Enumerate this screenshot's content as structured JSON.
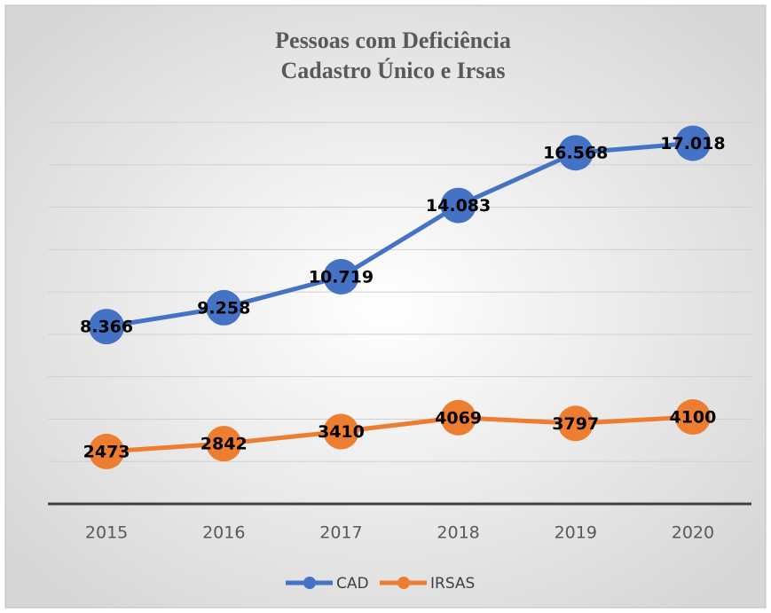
{
  "chart_data": {
    "type": "line",
    "title": "Pessoas com Deficiência",
    "subtitle": "Cadastro Único e Irsas",
    "categories": [
      "2015",
      "2016",
      "2017",
      "2018",
      "2019",
      "2020"
    ],
    "series": [
      {
        "name": "CAD",
        "color": "#4472c4",
        "values": [
          8366,
          9258,
          10719,
          14083,
          16568,
          17018
        ],
        "value_labels": [
          "8.366",
          "9.258",
          "10.719",
          "14.083",
          "16.568",
          "17.018"
        ]
      },
      {
        "name": "IRSAS",
        "color": "#ed7d31",
        "values": [
          2473,
          2842,
          3410,
          4069,
          3797,
          4100
        ]
      }
    ],
    "ylim": [
      0,
      18000
    ],
    "yticks": [
      2000,
      4000,
      6000,
      8000,
      10000,
      12000,
      14000,
      16000,
      18000
    ],
    "grid": true,
    "legend": "bottom"
  }
}
